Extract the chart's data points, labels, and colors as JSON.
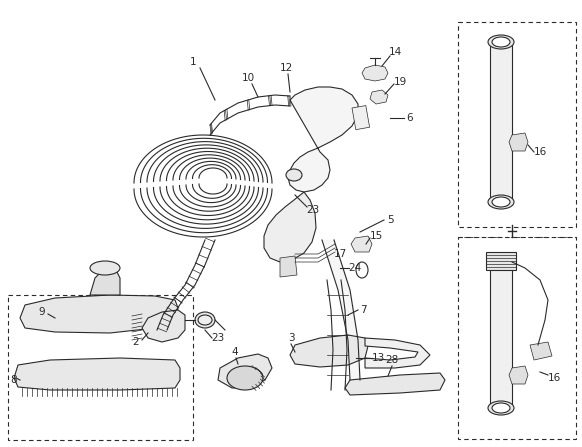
{
  "bg_color": "#ffffff",
  "lc": "#2a2a2a",
  "figsize": [
    5.82,
    4.47
  ],
  "dpi": 100,
  "lw": 0.8,
  "lw_thin": 0.5
}
